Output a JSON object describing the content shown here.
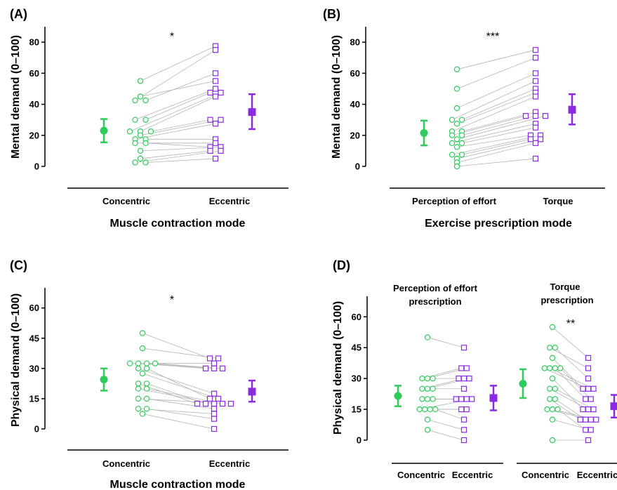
{
  "colors": {
    "concentric": "#2ecc5a",
    "eccentric": "#8a2be2",
    "line": "#b4b4b4"
  },
  "chart_data": [
    {
      "panel": "(A)",
      "type": "scatter",
      "ylabel": "Mental demand (0–100)",
      "xlabel": "Muscle contraction mode",
      "categories": [
        "Concentric",
        "Eccentric"
      ],
      "ylim": [
        0,
        90
      ],
      "yticks": [
        0,
        20,
        40,
        60,
        80
      ],
      "significance": "*",
      "series": [
        {
          "name": "Concentric",
          "marker": "circle",
          "values": [
            55,
            42.5,
            42.5,
            45,
            30,
            30,
            22.5,
            22.5,
            22.5,
            20,
            17.5,
            17.5,
            15,
            15,
            10,
            5,
            2.5,
            2.5
          ],
          "summary": {
            "mean": 23,
            "lower": 15.5,
            "upper": 30.5
          }
        },
        {
          "name": "Eccentric",
          "marker": "square",
          "values": [
            77.5,
            75,
            60,
            55,
            50,
            47.5,
            47.5,
            45,
            30,
            30,
            27.5,
            17.5,
            15,
            12.5,
            12.5,
            10,
            10,
            5
          ],
          "summary": {
            "mean": 35,
            "lower": 24,
            "upper": 46.5
          }
        }
      ]
    },
    {
      "panel": "(B)",
      "type": "scatter",
      "ylabel": "Mental demand (0–100)",
      "xlabel": "Exercise prescription mode",
      "categories": [
        "Perception of effort",
        "Torque"
      ],
      "ylim": [
        0,
        90
      ],
      "yticks": [
        0,
        20,
        40,
        60,
        80
      ],
      "significance": "***",
      "series": [
        {
          "name": "Perception of effort",
          "marker": "circle",
          "values": [
            62.5,
            50,
            37.5,
            30,
            30,
            27.5,
            22.5,
            22.5,
            20,
            20,
            17.5,
            15,
            15,
            12.5,
            7.5,
            7.5,
            5,
            2.5,
            0
          ],
          "summary": {
            "mean": 21.5,
            "lower": 13.5,
            "upper": 29.5
          }
        },
        {
          "name": "Torque",
          "marker": "square",
          "values": [
            75,
            70,
            60,
            55,
            50,
            47.5,
            45,
            35,
            32.5,
            32.5,
            32.5,
            27.5,
            25,
            20,
            20,
            17.5,
            17.5,
            15,
            5
          ],
          "summary": {
            "mean": 36.5,
            "lower": 27,
            "upper": 46.5
          }
        }
      ]
    },
    {
      "panel": "(C)",
      "type": "scatter",
      "ylabel": "Physical demand (0–100)",
      "xlabel": "Muscle contraction mode",
      "categories": [
        "Concentric",
        "Eccentric"
      ],
      "ylim": [
        0,
        70
      ],
      "yticks": [
        0,
        15,
        30,
        45,
        60
      ],
      "significance": "*",
      "series": [
        {
          "name": "Concentric",
          "marker": "circle",
          "values": [
            47.5,
            40,
            32.5,
            32.5,
            32.5,
            32.5,
            30,
            30,
            27.5,
            22.5,
            22.5,
            20,
            20,
            15,
            15,
            10,
            10,
            7.5
          ],
          "summary": {
            "mean": 24.5,
            "lower": 19,
            "upper": 30
          }
        },
        {
          "name": "Eccentric",
          "marker": "square",
          "values": [
            35,
            35,
            32.5,
            30,
            30,
            30,
            17.5,
            15,
            15,
            12.5,
            12.5,
            12.5,
            12.5,
            12.5,
            10,
            7.5,
            5,
            0
          ],
          "summary": {
            "mean": 18.5,
            "lower": 13.5,
            "upper": 24
          }
        }
      ]
    },
    {
      "panel": "(D)",
      "type": "scatter",
      "ylabel": "Physical demand (0–100)",
      "categories": [
        "Concentric",
        "Eccentric"
      ],
      "ylim": [
        0,
        70
      ],
      "yticks": [
        0,
        15,
        30,
        45,
        60
      ],
      "subplots": [
        {
          "title_lines": [
            "Perception of effort",
            "prescription"
          ],
          "significance": "",
          "series": [
            {
              "name": "Concentric",
              "marker": "circle",
              "values": [
                50,
                30,
                30,
                30,
                25,
                25,
                25,
                20,
                20,
                20,
                15,
                15,
                15,
                15,
                10,
                5
              ],
              "summary": {
                "mean": 21.5,
                "lower": 16.5,
                "upper": 26.5
              }
            },
            {
              "name": "Eccentric",
              "marker": "square",
              "values": [
                45,
                35,
                35,
                30,
                30,
                30,
                25,
                20,
                20,
                20,
                20,
                15,
                15,
                10,
                5,
                0
              ],
              "summary": {
                "mean": 20.5,
                "lower": 14.5,
                "upper": 26.5
              }
            }
          ]
        },
        {
          "title_lines": [
            "Torque",
            "prescription"
          ],
          "significance": "**",
          "series": [
            {
              "name": "Concentric",
              "marker": "circle",
              "values": [
                55,
                45,
                45,
                40,
                35,
                35,
                35,
                35,
                30,
                25,
                25,
                20,
                20,
                15,
                15,
                15,
                10,
                0
              ],
              "summary": {
                "mean": 27.5,
                "lower": 20.5,
                "upper": 34.5
              }
            },
            {
              "name": "Eccentric",
              "marker": "square",
              "values": [
                40,
                35,
                30,
                25,
                25,
                25,
                20,
                20,
                15,
                15,
                15,
                10,
                10,
                10,
                10,
                5,
                5,
                0
              ],
              "summary": {
                "mean": 16.5,
                "lower": 11,
                "upper": 22
              }
            }
          ]
        }
      ]
    }
  ]
}
